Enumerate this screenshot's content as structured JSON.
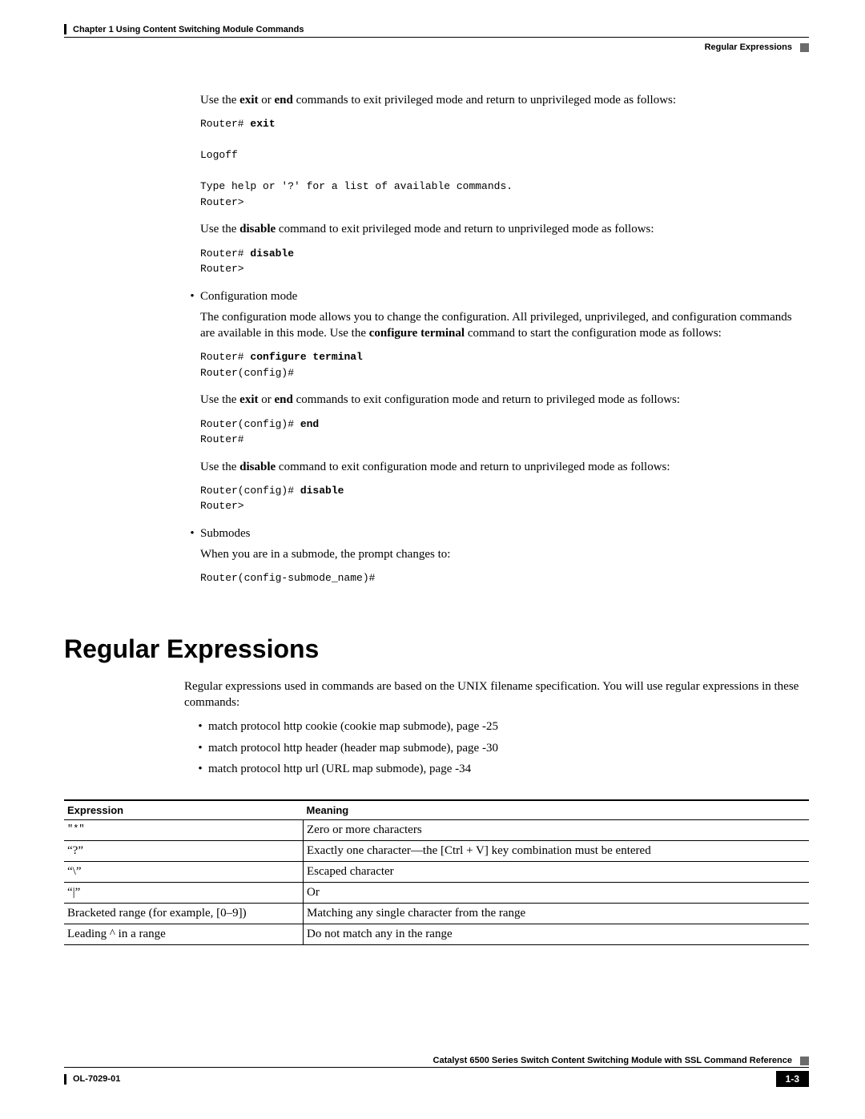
{
  "header": {
    "chapter_line": "Chapter 1      Using Content Switching Module Commands",
    "section_right": "Regular Expressions"
  },
  "body": {
    "p1_pre": "Use the ",
    "p1_b1": "exit",
    "p1_mid1": " or ",
    "p1_b2": "end",
    "p1_post": " commands to exit privileged mode and return to unprivileged mode as follows:",
    "code1_l1a": "Router# ",
    "code1_l1b": "exit",
    "code1_l2": "",
    "code1_l3": "Logoff",
    "code1_l4": "",
    "code1_l5": "Type help or '?' for a list of available commands.",
    "code1_l6": "Router>",
    "p2_pre": "Use the ",
    "p2_b1": "disable",
    "p2_post": " command to exit privileged mode and return to unprivileged mode as follows:",
    "code2_l1a": "Router# ",
    "code2_l1b": "disable",
    "code2_l2": "Router>",
    "bullet1": "Configuration mode",
    "p3_a": "The configuration mode allows you to change the configuration. All privileged, unprivileged, and configuration commands are available in this mode. Use the ",
    "p3_b": "configure terminal",
    "p3_c": " command to start the configuration mode as follows:",
    "code3_l1a": "Router# ",
    "code3_l1b": "configure terminal",
    "code3_l2": "Router(config)#",
    "p4_pre": "Use the ",
    "p4_b1": "exit",
    "p4_mid": " or ",
    "p4_b2": "end",
    "p4_post": " commands to exit configuration mode and return to privileged mode as follows:",
    "code4_l1a": "Router(config)# ",
    "code4_l1b": "end",
    "code4_l2": "Router#",
    "p5_pre": "Use the ",
    "p5_b1": "disable",
    "p5_post": " command to exit configuration mode and return to unprivileged mode as follows:",
    "code5_l1a": "Router(config)# ",
    "code5_l1b": "disable",
    "code5_l2": "Router>",
    "bullet2": "Submodes",
    "p6": "When you are in a submode, the prompt changes to:",
    "code6": "Router(config-submode_name)#"
  },
  "section": {
    "heading": "Regular Expressions",
    "intro": "Regular expressions used in commands are based on the UNIX filename specification. You will use regular expressions in these commands:",
    "b1": "match protocol http cookie (cookie map submode), page -25",
    "b2": "match protocol http header (header map submode), page -30",
    "b3": "match protocol http url (URL map submode), page -34"
  },
  "table": {
    "h1": "Expression",
    "h2": "Meaning",
    "r1c1": "\"*\"",
    "r1c2": "Zero or more characters",
    "r2c1": "“?”",
    "r2c2": "Exactly one character—the [Ctrl + V] key combination must be entered",
    "r3c1": "“\\”",
    "r3c2": "Escaped character",
    "r4c1": "“|”",
    "r4c2": "Or",
    "r5c1": "Bracketed range (for example, [0–9])",
    "r5c2": "Matching any single character from the range",
    "r6c1": "Leading ^ in a range",
    "r6c2": "Do not match any in the range"
  },
  "footer": {
    "title": "Catalyst 6500 Series Switch Content Switching Module with SSL Command Reference",
    "docnum": "OL-7029-01",
    "pagenum": "1-3"
  }
}
